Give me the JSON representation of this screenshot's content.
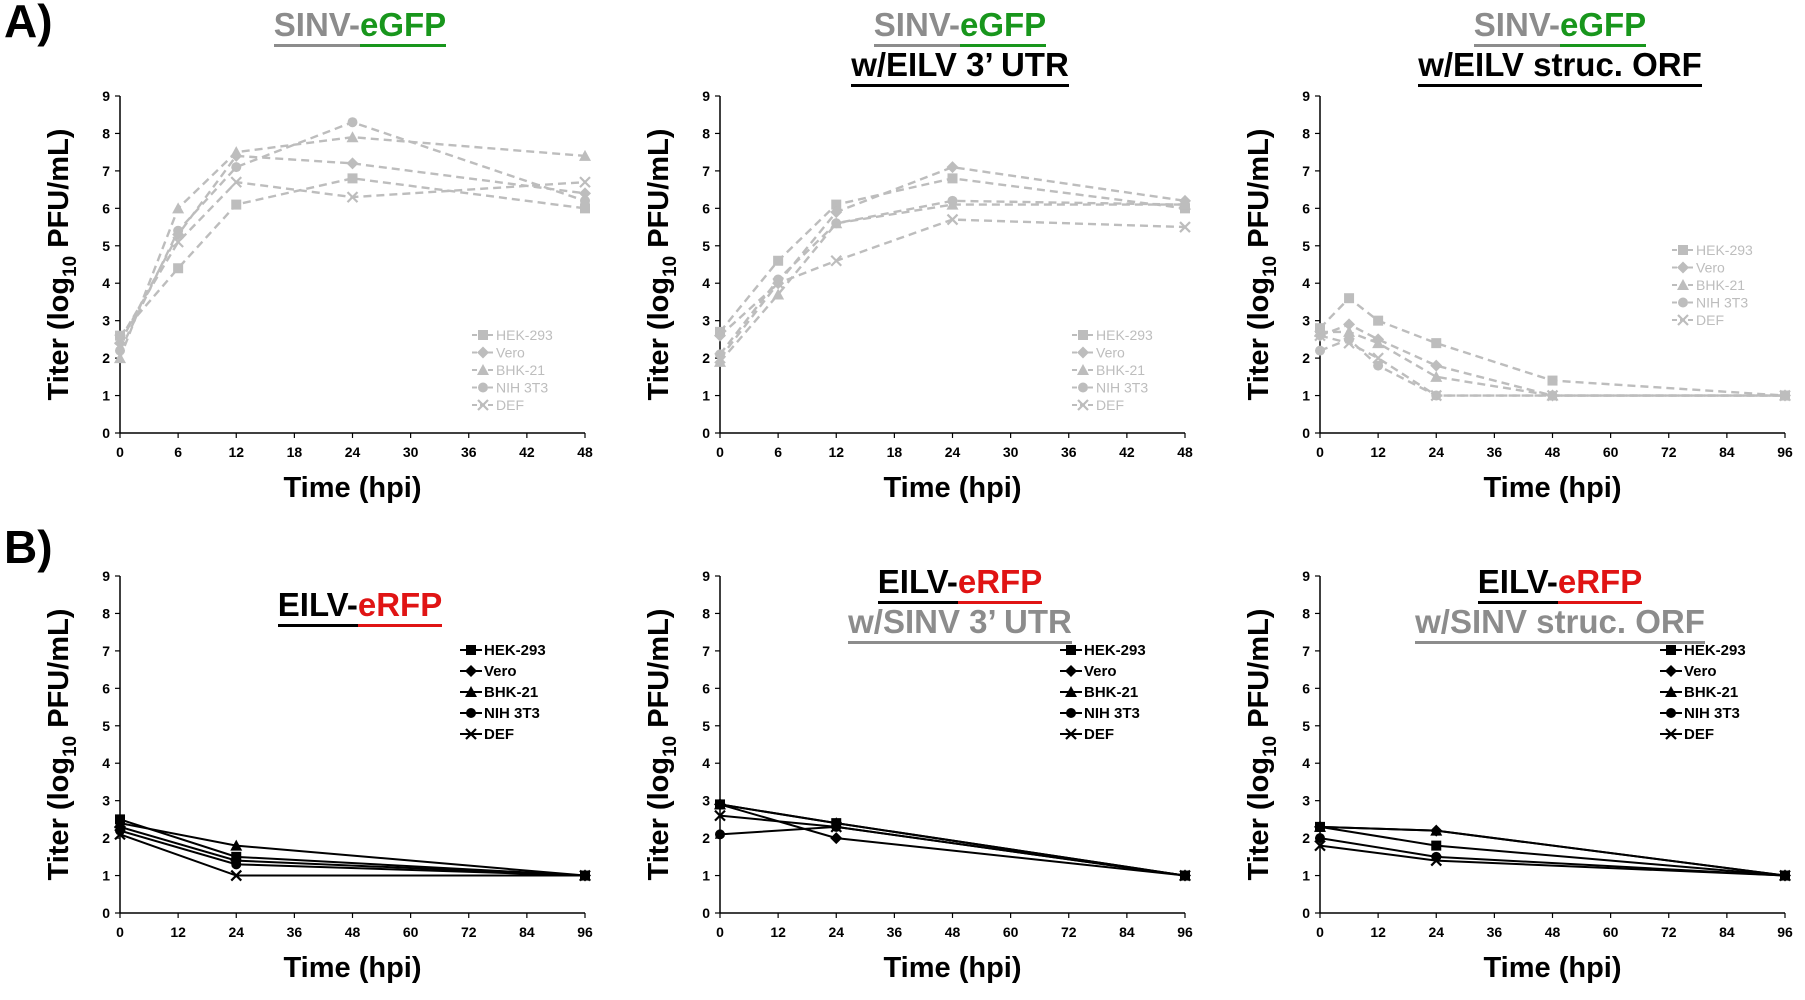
{
  "panel_letters": {
    "a": "A)",
    "b": "B)"
  },
  "colors": {
    "gray": "#8c8c8c",
    "green": "#18961c",
    "red": "#e01414",
    "black": "#000000",
    "series_gray": "#bdbdbd"
  },
  "chart_data": [
    {
      "type": "line",
      "title_lines": [
        [
          {
            "text": "SINV-",
            "color": "gray"
          },
          {
            "text": "eGFP",
            "color": "green"
          }
        ]
      ],
      "xlabel": "Time (hpi)",
      "ylabel": "Titer (log10 PFU/mL)",
      "xticks": [
        0,
        6,
        12,
        18,
        24,
        30,
        36,
        42,
        48
      ],
      "xlim": [
        0,
        48
      ],
      "ylim": [
        0,
        9
      ],
      "yticks": [
        0,
        1,
        2,
        3,
        4,
        5,
        6,
        7,
        8,
        9
      ],
      "line_style": "dashed",
      "series_color": "gray",
      "legend_position": "lower-right",
      "x": [
        0,
        6,
        12,
        24,
        48
      ],
      "series": [
        {
          "name": "HEK-293",
          "marker": "square",
          "values": [
            2.6,
            4.4,
            6.1,
            6.8,
            6.0
          ]
        },
        {
          "name": "Vero",
          "marker": "diamond",
          "values": [
            2.4,
            5.3,
            7.4,
            7.2,
            6.4
          ]
        },
        {
          "name": "BHK-21",
          "marker": "triangle",
          "values": [
            2.0,
            6.0,
            7.5,
            7.9,
            7.4
          ]
        },
        {
          "name": "NIH 3T3",
          "marker": "circle",
          "values": [
            2.2,
            5.4,
            7.1,
            8.3,
            6.2
          ]
        },
        {
          "name": "DEF",
          "marker": "x",
          "values": [
            2.5,
            5.1,
            6.7,
            6.3,
            6.7
          ]
        }
      ]
    },
    {
      "type": "line",
      "title_lines": [
        [
          {
            "text": "SINV-",
            "color": "gray"
          },
          {
            "text": "eGFP",
            "color": "green"
          }
        ],
        [
          {
            "text": "w/EILV 3’ UTR",
            "color": "black"
          }
        ]
      ],
      "xlabel": "Time (hpi)",
      "ylabel": "Titer (log10 PFU/mL)",
      "xticks": [
        0,
        6,
        12,
        18,
        24,
        30,
        36,
        42,
        48
      ],
      "xlim": [
        0,
        48
      ],
      "ylim": [
        0,
        9
      ],
      "yticks": [
        0,
        1,
        2,
        3,
        4,
        5,
        6,
        7,
        8,
        9
      ],
      "line_style": "dashed",
      "series_color": "gray",
      "legend_position": "lower-right",
      "x": [
        0,
        6,
        12,
        24,
        48
      ],
      "series": [
        {
          "name": "HEK-293",
          "marker": "square",
          "values": [
            2.7,
            4.6,
            6.1,
            6.8,
            6.0
          ]
        },
        {
          "name": "Vero",
          "marker": "diamond",
          "values": [
            2.6,
            4.0,
            5.9,
            7.1,
            6.2
          ]
        },
        {
          "name": "BHK-21",
          "marker": "triangle",
          "values": [
            1.9,
            3.7,
            5.6,
            6.1,
            6.1
          ]
        },
        {
          "name": "NIH 3T3",
          "marker": "circle",
          "values": [
            2.1,
            4.1,
            5.6,
            6.2,
            6.1
          ]
        },
        {
          "name": "DEF",
          "marker": "x",
          "values": [
            2.0,
            4.0,
            4.6,
            5.7,
            5.5
          ]
        }
      ]
    },
    {
      "type": "line",
      "title_lines": [
        [
          {
            "text": "SINV-",
            "color": "gray"
          },
          {
            "text": "eGFP",
            "color": "green"
          }
        ],
        [
          {
            "text": "w/EILV struc. ORF",
            "color": "black"
          }
        ]
      ],
      "xlabel": "Time (hpi)",
      "ylabel": "Titer (log10 PFU/mL)",
      "xticks": [
        0,
        12,
        24,
        36,
        48,
        60,
        72,
        84,
        96
      ],
      "xlim": [
        0,
        96
      ],
      "ylim": [
        0,
        9
      ],
      "yticks": [
        0,
        1,
        2,
        3,
        4,
        5,
        6,
        7,
        8,
        9
      ],
      "line_style": "dashed",
      "series_color": "gray",
      "legend_position": "upper-right",
      "x": [
        0,
        6,
        12,
        24,
        48,
        96
      ],
      "series": [
        {
          "name": "HEK-293",
          "marker": "square",
          "values": [
            2.8,
            3.6,
            3.0,
            2.4,
            1.4,
            1.0
          ]
        },
        {
          "name": "Vero",
          "marker": "diamond",
          "values": [
            2.6,
            2.9,
            2.5,
            1.8,
            1.0,
            1.0
          ]
        },
        {
          "name": "BHK-21",
          "marker": "triangle",
          "values": [
            2.7,
            2.7,
            2.4,
            1.5,
            1.0,
            1.0
          ]
        },
        {
          "name": "NIH 3T3",
          "marker": "circle",
          "values": [
            2.2,
            2.5,
            1.8,
            1.0,
            1.0,
            1.0
          ]
        },
        {
          "name": "DEF",
          "marker": "x",
          "values": [
            2.6,
            2.4,
            2.0,
            1.0,
            1.0,
            1.0
          ]
        }
      ]
    },
    {
      "type": "line",
      "title_lines": [
        [
          {
            "text": "EILV-",
            "color": "black"
          },
          {
            "text": "eRFP",
            "color": "red"
          }
        ]
      ],
      "xlabel": "Time (hpi)",
      "ylabel": "Titer (log10 PFU/mL)",
      "xticks": [
        0,
        12,
        24,
        36,
        48,
        60,
        72,
        84,
        96
      ],
      "xlim": [
        0,
        96
      ],
      "ylim": [
        0,
        9
      ],
      "yticks": [
        0,
        1,
        2,
        3,
        4,
        5,
        6,
        7,
        8,
        9
      ],
      "line_style": "solid",
      "series_color": "black",
      "legend_position": "middle-right",
      "x": [
        0,
        24,
        96
      ],
      "series": [
        {
          "name": "HEK-293",
          "marker": "square",
          "values": [
            2.5,
            1.5,
            1.0
          ]
        },
        {
          "name": "Vero",
          "marker": "diamond",
          "values": [
            2.3,
            1.4,
            1.0
          ]
        },
        {
          "name": "BHK-21",
          "marker": "triangle",
          "values": [
            2.4,
            1.8,
            1.0
          ]
        },
        {
          "name": "NIH 3T3",
          "marker": "circle",
          "values": [
            2.2,
            1.3,
            1.0
          ]
        },
        {
          "name": "DEF",
          "marker": "x",
          "values": [
            2.1,
            1.0,
            1.0
          ]
        }
      ]
    },
    {
      "type": "line",
      "title_lines": [
        [
          {
            "text": "EILV-",
            "color": "black"
          },
          {
            "text": "eRFP",
            "color": "red"
          }
        ],
        [
          {
            "text": "w/SINV 3’ UTR",
            "color": "gray"
          }
        ]
      ],
      "xlabel": "Time (hpi)",
      "ylabel": "Titer (log10 PFU/mL)",
      "xticks": [
        0,
        12,
        24,
        36,
        48,
        60,
        72,
        84,
        96
      ],
      "xlim": [
        0,
        96
      ],
      "ylim": [
        0,
        9
      ],
      "yticks": [
        0,
        1,
        2,
        3,
        4,
        5,
        6,
        7,
        8,
        9
      ],
      "line_style": "solid",
      "series_color": "black",
      "legend_position": "middle-right",
      "x": [
        0,
        24,
        96
      ],
      "series": [
        {
          "name": "HEK-293",
          "marker": "square",
          "values": [
            2.9,
            2.4,
            1.0
          ]
        },
        {
          "name": "Vero",
          "marker": "diamond",
          "values": [
            2.9,
            2.0,
            1.0
          ]
        },
        {
          "name": "BHK-21",
          "marker": "triangle",
          "values": [
            2.9,
            2.4,
            1.0
          ]
        },
        {
          "name": "NIH 3T3",
          "marker": "circle",
          "values": [
            2.1,
            2.3,
            1.0
          ]
        },
        {
          "name": "DEF",
          "marker": "x",
          "values": [
            2.6,
            2.3,
            1.0
          ]
        }
      ]
    },
    {
      "type": "line",
      "title_lines": [
        [
          {
            "text": "EILV-",
            "color": "black"
          },
          {
            "text": "eRFP",
            "color": "red"
          }
        ],
        [
          {
            "text": "w/SINV struc. ORF",
            "color": "gray"
          }
        ]
      ],
      "xlabel": "Time (hpi)",
      "ylabel": "Titer (log10 PFU/mL)",
      "xticks": [
        0,
        12,
        24,
        36,
        48,
        60,
        72,
        84,
        96
      ],
      "xlim": [
        0,
        96
      ],
      "ylim": [
        0,
        9
      ],
      "yticks": [
        0,
        1,
        2,
        3,
        4,
        5,
        6,
        7,
        8,
        9
      ],
      "line_style": "solid",
      "series_color": "black",
      "legend_position": "middle-right",
      "x": [
        0,
        24,
        96
      ],
      "series": [
        {
          "name": "HEK-293",
          "marker": "square",
          "values": [
            2.3,
            1.8,
            1.0
          ]
        },
        {
          "name": "Vero",
          "marker": "diamond",
          "values": [
            2.3,
            2.2,
            1.0
          ]
        },
        {
          "name": "BHK-21",
          "marker": "triangle",
          "values": [
            2.3,
            2.2,
            1.0
          ]
        },
        {
          "name": "NIH 3T3",
          "marker": "circle",
          "values": [
            2.0,
            1.5,
            1.0
          ]
        },
        {
          "name": "DEF",
          "marker": "x",
          "values": [
            1.8,
            1.4,
            1.0
          ]
        }
      ]
    }
  ]
}
